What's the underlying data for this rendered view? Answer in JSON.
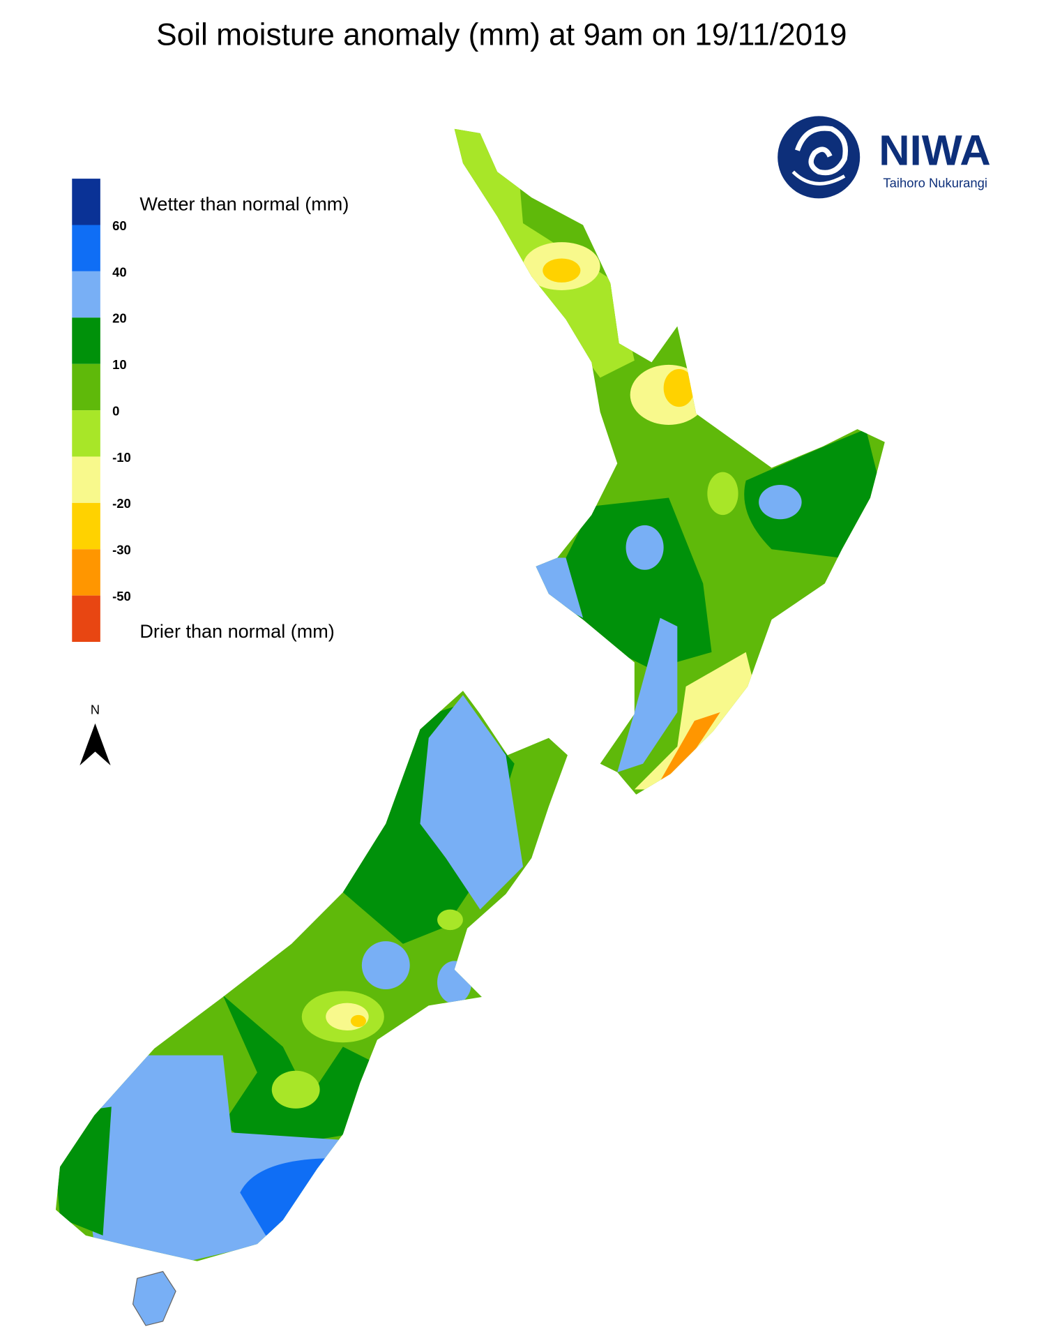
{
  "header": {
    "title": "Soil moisture anomaly (mm) at 9am on 19/11/2019"
  },
  "legend": {
    "wetter_label": "Wetter than normal (mm)",
    "drier_label": "Drier than normal (mm)",
    "colors": [
      "#0a3296",
      "#0f6ef5",
      "#78aff5",
      "#00910a",
      "#5fb90a",
      "#a8e628",
      "#f8f98c",
      "#ffd200",
      "#ff9600",
      "#e84612"
    ],
    "labels": [
      "60",
      "40",
      "20",
      "10",
      "0",
      "-10",
      "-20",
      "-30",
      "-50"
    ]
  },
  "north_arrow": {
    "label": "N"
  },
  "logo": {
    "name": "NIWA",
    "subtitle": "Taihoro Nukurangi"
  }
}
